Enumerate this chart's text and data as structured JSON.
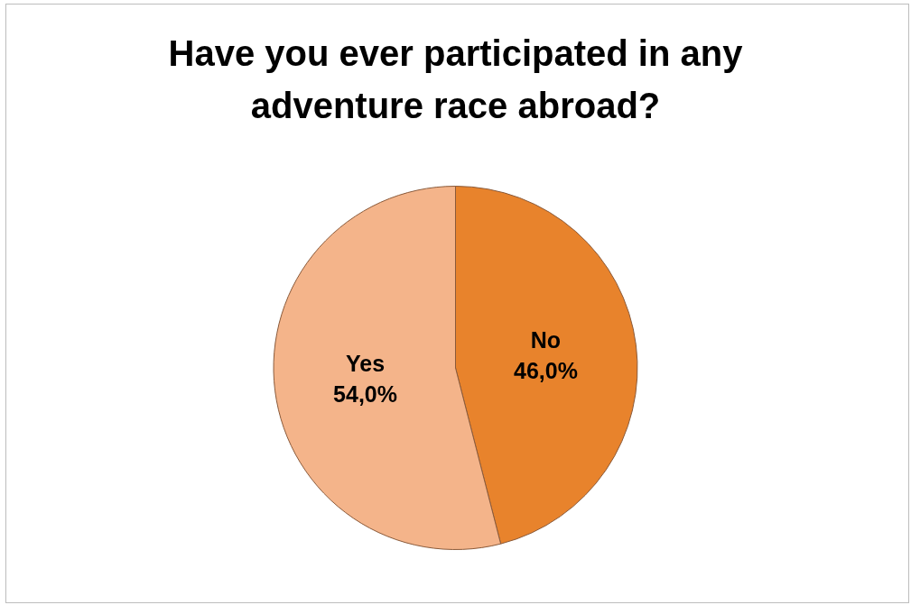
{
  "chart_data": {
    "type": "pie",
    "title": "Have you ever participated in any adventure race abroad?",
    "categories": [
      "No",
      "Yes"
    ],
    "values": [
      46.0,
      54.0
    ],
    "colors": [
      "#e8832c",
      "#f4b48a"
    ],
    "value_labels": [
      "46,0%",
      "54,0%"
    ],
    "legend": false
  }
}
